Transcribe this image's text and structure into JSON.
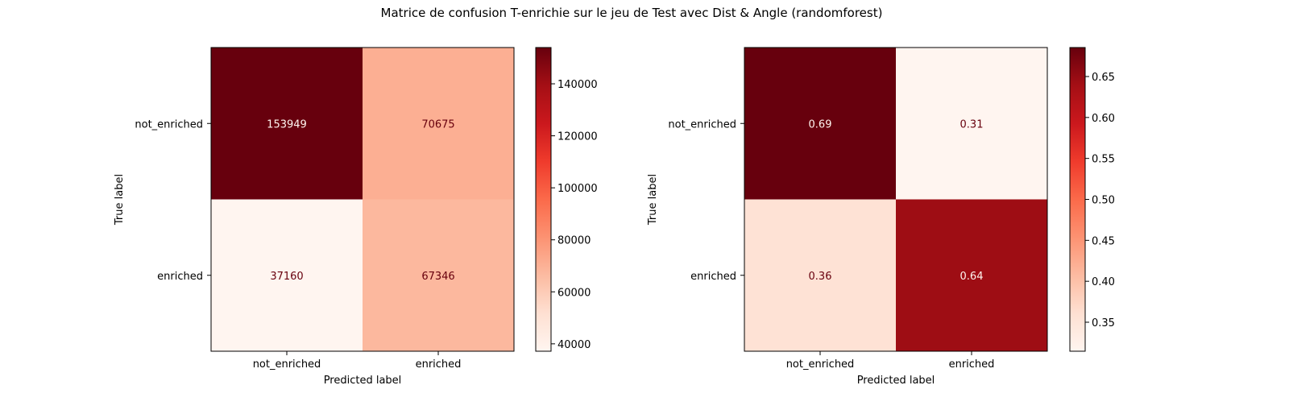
{
  "figure": {
    "title": "Matrice de confusion T-enrichie sur le jeu de Test avec Dist & Angle (randomforest)"
  },
  "colors": {
    "background": "#ffffff",
    "axis": "#000000",
    "colormap": "Reds",
    "cmap_stops": [
      "#fff5f0",
      "#fee0d2",
      "#fcbba1",
      "#fc9272",
      "#fb6a4a",
      "#ef3b2c",
      "#cb181d",
      "#a50f15",
      "#67000d"
    ],
    "dark_text": "#67000d",
    "light_text": "#fff5f0"
  },
  "chart_data": [
    {
      "type": "heatmap",
      "title": "",
      "xlabel": "Predicted label",
      "ylabel": "True label",
      "x_categories": [
        "not_enriched",
        "enriched"
      ],
      "y_categories": [
        "not_enriched",
        "enriched"
      ],
      "values": [
        [
          153949,
          70675
        ],
        [
          37160,
          67346
        ]
      ],
      "cell_labels": [
        [
          "153949",
          "70675"
        ],
        [
          "37160",
          "67346"
        ]
      ],
      "colorbar": {
        "vmin": 37160,
        "vmax": 153949,
        "ticks": [
          40000,
          60000,
          80000,
          100000,
          120000,
          140000
        ],
        "tick_labels": [
          "40000",
          "60000",
          "80000",
          "100000",
          "120000",
          "140000"
        ]
      }
    },
    {
      "type": "heatmap",
      "title": "",
      "xlabel": "Predicted label",
      "ylabel": "True label",
      "x_categories": [
        "not_enriched",
        "enriched"
      ],
      "y_categories": [
        "not_enriched",
        "enriched"
      ],
      "values": [
        [
          0.6854,
          0.3146
        ],
        [
          0.3556,
          0.6444
        ]
      ],
      "cell_labels": [
        [
          "0.69",
          "0.31"
        ],
        [
          "0.36",
          "0.64"
        ]
      ],
      "colorbar": {
        "vmin": 0.3146,
        "vmax": 0.6854,
        "ticks": [
          0.35,
          0.4,
          0.45,
          0.5,
          0.55,
          0.6,
          0.65
        ],
        "tick_labels": [
          "0.35",
          "0.40",
          "0.45",
          "0.50",
          "0.55",
          "0.60",
          "0.65"
        ]
      }
    }
  ]
}
